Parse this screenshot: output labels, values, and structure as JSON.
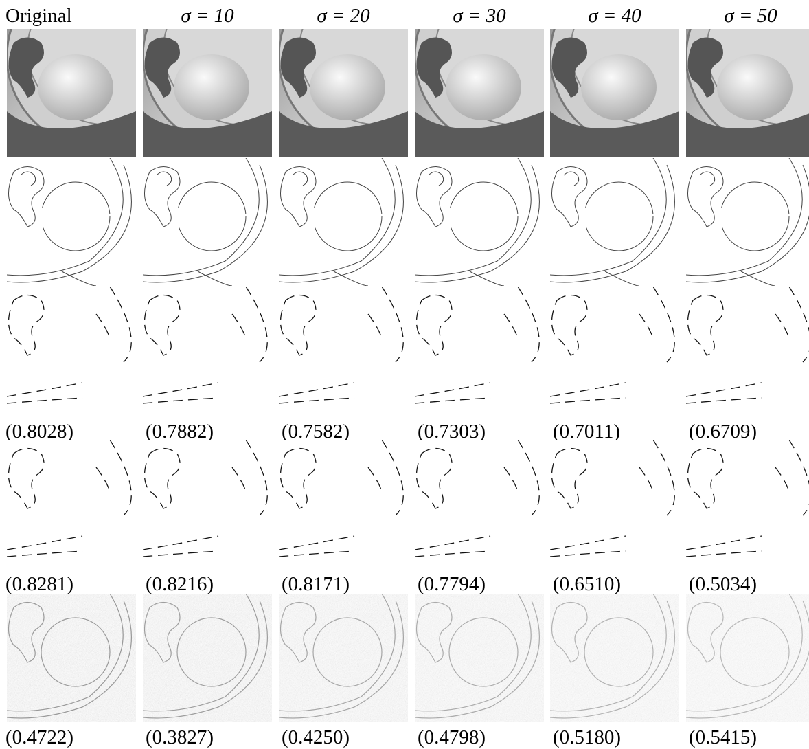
{
  "columns": [
    "Original",
    "σ = 10",
    "σ = 20",
    "σ = 30",
    "σ = 40",
    "σ = 50"
  ],
  "score_rows": [
    [
      "(0.8028)",
      "(0.7882)",
      "(0.7582)",
      "(0.7303)",
      "(0.7011)",
      "(0.6709)"
    ],
    [
      "(0.8281)",
      "(0.8216)",
      "(0.8171)",
      "(0.7794)",
      "(0.6510)",
      "(0.5034)"
    ],
    [
      "(0.4722)",
      "(0.3827)",
      "(0.4250)",
      "(0.4798)",
      "(0.5180)",
      "(0.5415)"
    ]
  ]
}
